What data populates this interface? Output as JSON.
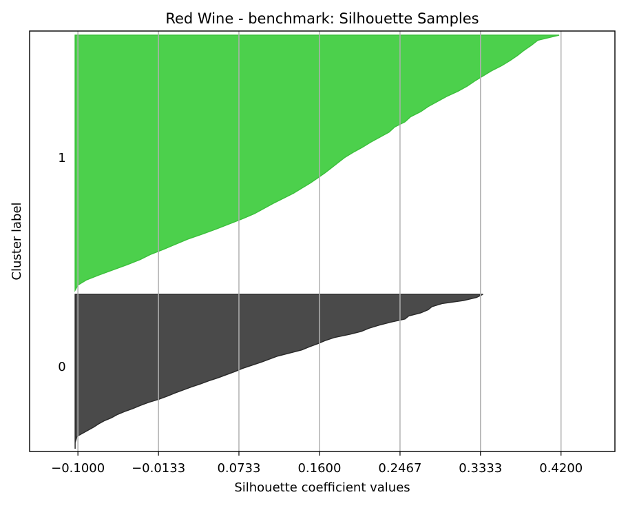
{
  "chart_data": {
    "type": "area",
    "title": "Red Wine - benchmark: Silhouette Samples",
    "xlabel": "Silhouette coefficient values",
    "ylabel": "Cluster label",
    "x_ticks": [
      "−0.1000",
      "−0.0133",
      "0.0733",
      "0.1600",
      "0.2467",
      "0.3333",
      "0.4200"
    ],
    "x_tick_values": [
      -0.1,
      -0.0133,
      0.0733,
      0.16,
      0.2467,
      0.3333,
      0.42
    ],
    "xlim": [
      -0.152,
      0.478
    ],
    "grid": "vertical",
    "clusters": [
      {
        "label": "0",
        "color": "#4a4a4a",
        "edge_color": "#2b2b2b",
        "profile": [
          [
            0.0,
            0.336
          ],
          [
            0.02,
            0.329
          ],
          [
            0.04,
            0.315
          ],
          [
            0.06,
            0.292
          ],
          [
            0.08,
            0.281
          ],
          [
            0.1,
            0.277
          ],
          [
            0.12,
            0.269
          ],
          [
            0.14,
            0.256
          ],
          [
            0.16,
            0.252
          ],
          [
            0.18,
            0.237
          ],
          [
            0.2,
            0.224
          ],
          [
            0.22,
            0.213
          ],
          [
            0.24,
            0.205
          ],
          [
            0.26,
            0.192
          ],
          [
            0.28,
            0.176
          ],
          [
            0.3,
            0.166
          ],
          [
            0.32,
            0.158
          ],
          [
            0.34,
            0.149
          ],
          [
            0.36,
            0.141
          ],
          [
            0.38,
            0.128
          ],
          [
            0.4,
            0.115
          ],
          [
            0.42,
            0.106
          ],
          [
            0.44,
            0.097
          ],
          [
            0.46,
            0.087
          ],
          [
            0.48,
            0.077
          ],
          [
            0.5,
            0.069
          ],
          [
            0.52,
            0.06
          ],
          [
            0.54,
            0.051
          ],
          [
            0.56,
            0.041
          ],
          [
            0.58,
            0.032
          ],
          [
            0.6,
            0.022
          ],
          [
            0.62,
            0.013
          ],
          [
            0.64,
            0.004
          ],
          [
            0.66,
            -0.004
          ],
          [
            0.68,
            -0.013
          ],
          [
            0.7,
            -0.024
          ],
          [
            0.72,
            -0.033
          ],
          [
            0.74,
            -0.041
          ],
          [
            0.76,
            -0.05
          ],
          [
            0.78,
            -0.058
          ],
          [
            0.8,
            -0.064
          ],
          [
            0.82,
            -0.072
          ],
          [
            0.84,
            -0.078
          ],
          [
            0.86,
            -0.083
          ],
          [
            0.88,
            -0.089
          ],
          [
            0.9,
            -0.095
          ],
          [
            0.92,
            -0.101
          ],
          [
            0.94,
            -0.102
          ],
          [
            0.96,
            -0.103
          ],
          [
            0.98,
            -0.103
          ],
          [
            1.0,
            -0.103
          ]
        ]
      },
      {
        "label": "1",
        "color": "#4cd04c",
        "edge_color": "#3cc03c",
        "profile": [
          [
            0.0,
            0.418
          ],
          [
            0.02,
            0.395
          ],
          [
            0.04,
            0.388
          ],
          [
            0.06,
            0.38
          ],
          [
            0.08,
            0.373
          ],
          [
            0.1,
            0.365
          ],
          [
            0.12,
            0.356
          ],
          [
            0.14,
            0.345
          ],
          [
            0.16,
            0.336
          ],
          [
            0.18,
            0.327
          ],
          [
            0.2,
            0.319
          ],
          [
            0.22,
            0.309
          ],
          [
            0.24,
            0.297
          ],
          [
            0.26,
            0.287
          ],
          [
            0.28,
            0.277
          ],
          [
            0.3,
            0.269
          ],
          [
            0.32,
            0.258
          ],
          [
            0.34,
            0.252
          ],
          [
            0.36,
            0.241
          ],
          [
            0.38,
            0.235
          ],
          [
            0.4,
            0.225
          ],
          [
            0.42,
            0.215
          ],
          [
            0.44,
            0.206
          ],
          [
            0.46,
            0.196
          ],
          [
            0.48,
            0.187
          ],
          [
            0.5,
            0.18
          ],
          [
            0.52,
            0.173
          ],
          [
            0.54,
            0.166
          ],
          [
            0.56,
            0.158
          ],
          [
            0.58,
            0.15
          ],
          [
            0.6,
            0.141
          ],
          [
            0.62,
            0.132
          ],
          [
            0.64,
            0.121
          ],
          [
            0.66,
            0.11
          ],
          [
            0.68,
            0.1
          ],
          [
            0.7,
            0.09
          ],
          [
            0.72,
            0.077
          ],
          [
            0.74,
            0.063
          ],
          [
            0.76,
            0.049
          ],
          [
            0.78,
            0.034
          ],
          [
            0.8,
            0.018
          ],
          [
            0.82,
            0.005
          ],
          [
            0.84,
            -0.008
          ],
          [
            0.86,
            -0.022
          ],
          [
            0.88,
            -0.033
          ],
          [
            0.9,
            -0.047
          ],
          [
            0.92,
            -0.062
          ],
          [
            0.94,
            -0.077
          ],
          [
            0.96,
            -0.091
          ],
          [
            0.98,
            -0.1
          ],
          [
            1.0,
            -0.103
          ]
        ]
      }
    ]
  }
}
